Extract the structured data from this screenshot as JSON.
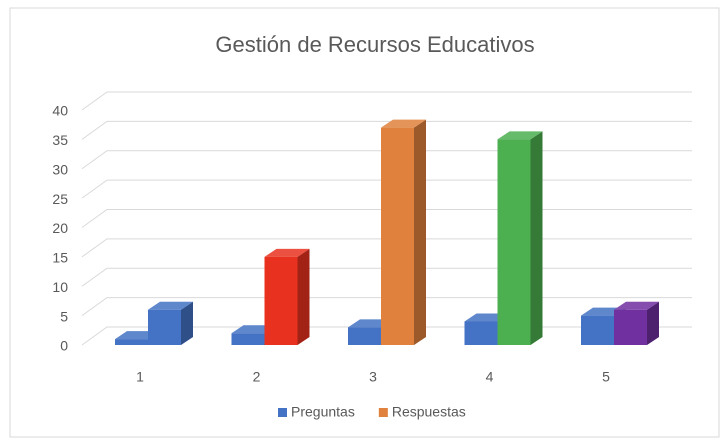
{
  "chart_data": {
    "type": "bar3d",
    "title": "Gestión de Recursos Educativos",
    "categories": [
      "1",
      "2",
      "3",
      "4",
      "5"
    ],
    "series": [
      {
        "name": "Preguntas",
        "color": "#4472c4",
        "values": [
          1,
          2,
          3,
          4,
          5
        ]
      },
      {
        "name": "Respuestas",
        "color": "#e0823d",
        "values": [
          6,
          15,
          37,
          35,
          6
        ],
        "colors": [
          "#4472c4",
          "#e8321f",
          "#e0823d",
          "#4caf50",
          "#7030a0"
        ]
      }
    ],
    "ylim": [
      0,
      40
    ],
    "yticks": [
      0,
      5,
      10,
      15,
      20,
      25,
      30,
      35,
      40
    ],
    "grid": true,
    "legend": "bottom"
  }
}
